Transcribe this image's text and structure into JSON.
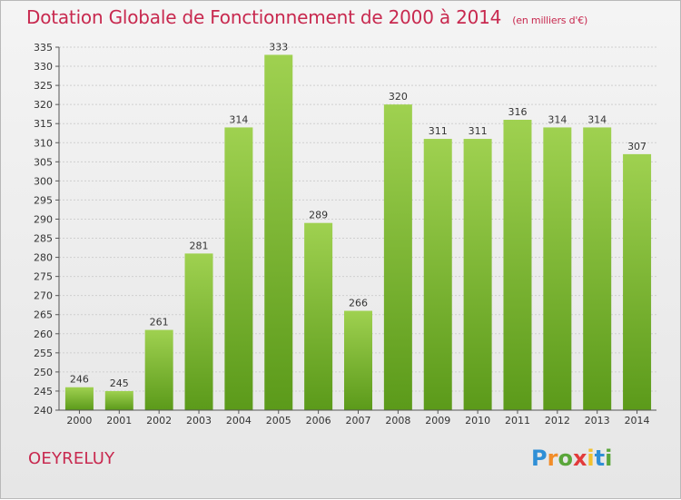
{
  "header": {
    "title": "Dotation Globale de Fonctionnement de 2000 à 2014",
    "unit": "(en milliers d'€)"
  },
  "footer": {
    "commune": "OEYRELUY",
    "logo_letters": [
      {
        "ch": "P",
        "color": "#2f8fd6"
      },
      {
        "ch": "r",
        "color": "#f28c28"
      },
      {
        "ch": "o",
        "color": "#5aa63a"
      },
      {
        "ch": "x",
        "color": "#e23b3b"
      },
      {
        "ch": "i",
        "color": "#f2c12e"
      },
      {
        "ch": "t",
        "color": "#2f8fd6"
      },
      {
        "ch": "i",
        "color": "#5aa63a"
      }
    ]
  },
  "colors": {
    "bar_top": "#9fd150",
    "bar_bottom": "#5b9a1a",
    "grid": "#cfcfcf",
    "axis": "#555555"
  },
  "chart_data": {
    "type": "bar",
    "categories": [
      "2000",
      "2001",
      "2002",
      "2003",
      "2004",
      "2005",
      "2006",
      "2007",
      "2008",
      "2009",
      "2010",
      "2011",
      "2012",
      "2013",
      "2014"
    ],
    "values": [
      246,
      245,
      261,
      281,
      314,
      333,
      289,
      266,
      320,
      311,
      311,
      316,
      314,
      314,
      307
    ],
    "ylim": [
      240,
      335
    ],
    "yticks": [
      240,
      245,
      250,
      255,
      260,
      265,
      270,
      275,
      280,
      285,
      290,
      295,
      300,
      305,
      310,
      315,
      320,
      325,
      330,
      335
    ],
    "grid": true,
    "data_labels": true
  }
}
